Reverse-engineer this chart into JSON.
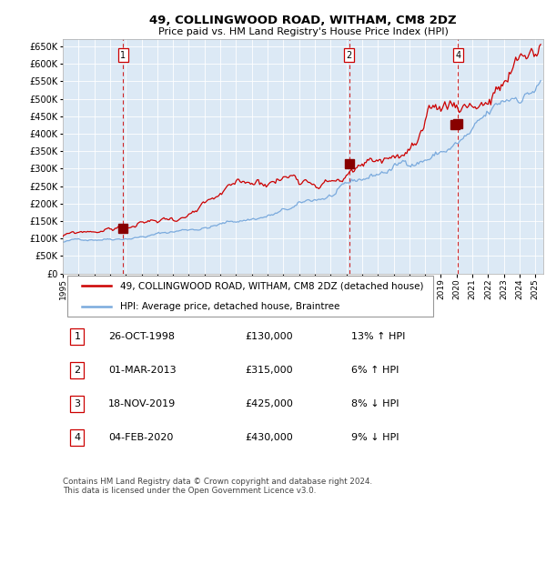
{
  "title": "49, COLLINGWOOD ROAD, WITHAM, CM8 2DZ",
  "subtitle": "Price paid vs. HM Land Registry's House Price Index (HPI)",
  "plot_bg_color": "#dce9f5",
  "x_start_year": 1995,
  "x_end_year": 2025,
  "y_ticks": [
    0,
    50000,
    100000,
    150000,
    200000,
    250000,
    300000,
    350000,
    400000,
    450000,
    500000,
    550000,
    600000,
    650000
  ],
  "transactions": [
    {
      "num": 1,
      "date": "26-OCT-1998",
      "year": 1998.82,
      "price": 130000,
      "hpi_rel": "13% ↑ HPI"
    },
    {
      "num": 2,
      "date": "01-MAR-2013",
      "year": 2013.17,
      "price": 315000,
      "hpi_rel": "6% ↑ HPI"
    },
    {
      "num": 3,
      "date": "18-NOV-2019",
      "year": 2019.88,
      "price": 425000,
      "hpi_rel": "8% ↓ HPI"
    },
    {
      "num": 4,
      "date": "04-FEB-2020",
      "year": 2020.09,
      "price": 430000,
      "hpi_rel": "9% ↓ HPI"
    }
  ],
  "vline_transactions": [
    1,
    2,
    4
  ],
  "red_line_color": "#cc0000",
  "blue_line_color": "#7aaadd",
  "vline_color": "#cc0000",
  "legend_label_red": "49, COLLINGWOOD ROAD, WITHAM, CM8 2DZ (detached house)",
  "legend_label_blue": "HPI: Average price, detached house, Braintree",
  "footer_text": "Contains HM Land Registry data © Crown copyright and database right 2024.\nThis data is licensed under the Open Government Licence v3.0.",
  "marker_color": "#880000",
  "marker_size": 7,
  "title_fontsize": 9.5,
  "subtitle_fontsize": 8,
  "tick_fontsize": 6.5,
  "ytick_fontsize": 7
}
